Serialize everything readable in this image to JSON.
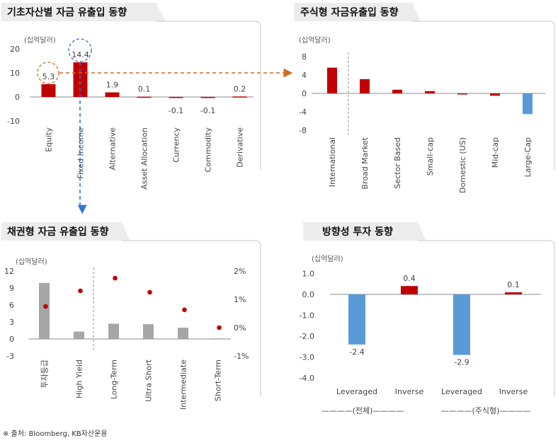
{
  "source": "※ 출처: Bloomberg, KB자산운용",
  "colors": {
    "red": "#C00000",
    "blue": "#5B9BD5",
    "gray": "#A6A6A6",
    "orange": "#D2691E",
    "link_blue": "#2E75D4"
  },
  "chart_data": [
    {
      "id": "asset",
      "type": "bar",
      "title": "기초자산별 자금 유출입 동향",
      "unit_label": "(십억달러)",
      "ylim": [
        -10,
        20
      ],
      "yticks": [
        "20",
        "10",
        "0",
        "-10"
      ],
      "categories": [
        "Equity",
        "Fixed Income",
        "Alternative",
        "Asset Allocation",
        "Currency",
        "Commodity",
        "Derivative"
      ],
      "values": [
        5.3,
        14.4,
        1.9,
        0.1,
        -0.1,
        -0.1,
        0.2
      ],
      "labels": [
        "5.3",
        "14.4",
        "1.9",
        "0.1",
        "-0.1",
        "-0.1",
        "0.2"
      ]
    },
    {
      "id": "equity",
      "type": "bar",
      "title": "주식형 자금유출입 동향",
      "unit_label": "(십억달러)",
      "ylim": [
        -8,
        8
      ],
      "yticks": [
        "8",
        "4",
        "0",
        "-4",
        "-8"
      ],
      "categories": [
        "International",
        "Broad Market",
        "Sector Based",
        "Small-cap",
        "Domestic (US)",
        "Mid-cap",
        "Large-Cap"
      ],
      "values": [
        5.6,
        3.1,
        0.8,
        0.5,
        -0.1,
        -0.5,
        -4.5
      ]
    },
    {
      "id": "bond",
      "type": "bar",
      "title": "채권형 자금 유출입 동향",
      "unit_label": "(십억달러)",
      "ylim": [
        -3,
        12
      ],
      "yticks": [
        "12",
        "9",
        "6",
        "3",
        "0",
        "-3"
      ],
      "y2lim": [
        -1,
        2
      ],
      "y2ticks": [
        "2%",
        "1%",
        "0%",
        "-1%"
      ],
      "categories": [
        "투자등급",
        "High Yield",
        "Long-Term",
        "Ultra Short",
        "Intermediate",
        "Short-Term"
      ],
      "values": [
        9.9,
        1.3,
        2.7,
        2.6,
        2.0,
        0.1
      ],
      "points_pct": [
        0.75,
        1.3,
        1.75,
        1.25,
        0.63,
        0.0
      ]
    },
    {
      "id": "direction",
      "type": "bar",
      "title": "방향성 투자 동향",
      "unit_label": "(십억달러)",
      "ylim": [
        -4,
        1
      ],
      "yticks": [
        "1.0",
        "0.0",
        "-1.0",
        "-2.0",
        "-3.0",
        "-4.0"
      ],
      "categories": [
        "Leveraged",
        "Inverse",
        "Leveraged",
        "Inverse"
      ],
      "values": [
        -2.4,
        0.4,
        -2.9,
        0.1
      ],
      "labels": [
        "-2.4",
        "0.4",
        "-2.9",
        "0.1"
      ],
      "groups": [
        "————(전체)————",
        "————(주식형)————"
      ]
    }
  ]
}
